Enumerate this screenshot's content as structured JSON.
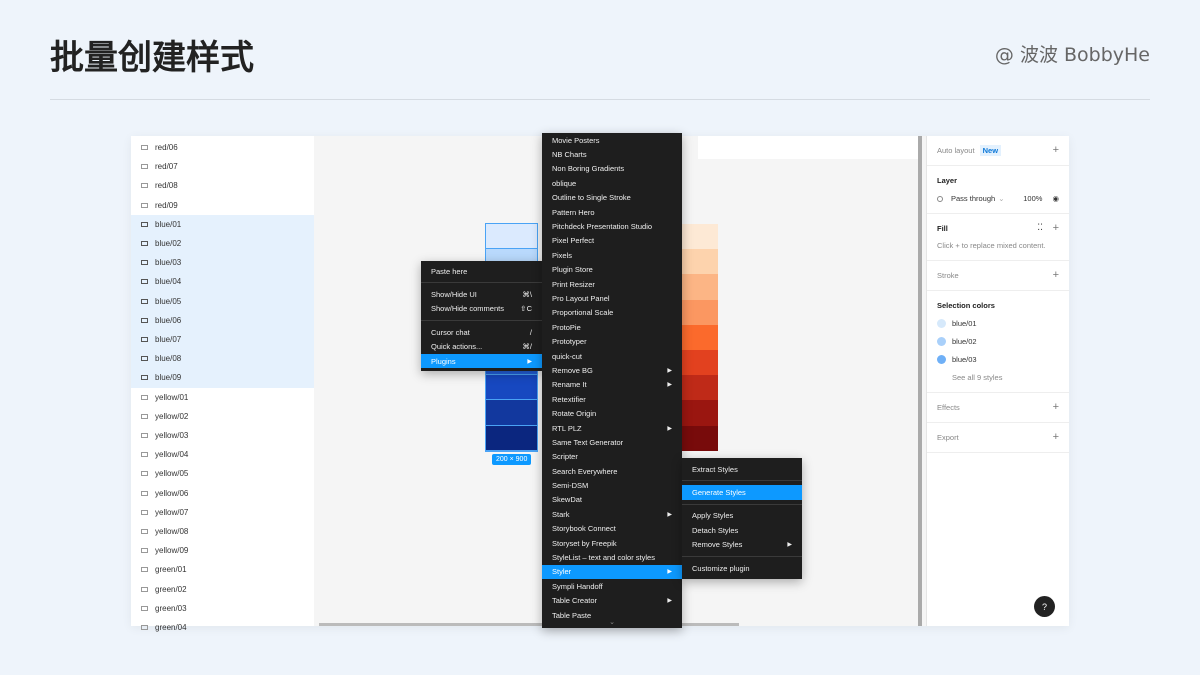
{
  "header": {
    "title": "批量创建样式",
    "author": "@ 波波 BobbyHe"
  },
  "layers": [
    "red/06",
    "red/07",
    "red/08",
    "red/09",
    "blue/01",
    "blue/02",
    "blue/03",
    "blue/04",
    "blue/05",
    "blue/06",
    "blue/07",
    "blue/08",
    "blue/09",
    "yellow/01",
    "yellow/02",
    "yellow/03",
    "yellow/04",
    "yellow/05",
    "yellow/06",
    "yellow/07",
    "yellow/08",
    "yellow/09",
    "green/01",
    "green/02",
    "green/03",
    "green/04"
  ],
  "canvas": {
    "size_label": "200 × 900",
    "blue_colors": [
      "#dbeafe",
      "#b9d9fc",
      "#8fc1fb",
      "#5ea2f7",
      "#3a7ff0",
      "#2360dc",
      "#1748c0",
      "#12389e",
      "#0b267f"
    ],
    "red_colors": [
      "#fde9d5",
      "#fdd3ad",
      "#fcb585",
      "#fb9761",
      "#fb6a2c",
      "#e2411f",
      "#bf2a18",
      "#9a1610",
      "#780b0b"
    ]
  },
  "context_menu": {
    "items": [
      {
        "label": "Paste here",
        "shortcut": ""
      },
      {
        "label": "Show/Hide UI",
        "shortcut": "⌘\\"
      },
      {
        "label": "Show/Hide comments",
        "shortcut": "⇧C"
      },
      {
        "label": "Cursor chat",
        "shortcut": "/"
      },
      {
        "label": "Quick actions...",
        "shortcut": "⌘/"
      },
      {
        "label": "Plugins",
        "shortcut": "▶"
      }
    ]
  },
  "plugins_menu": {
    "items": [
      {
        "label": "Movie Posters"
      },
      {
        "label": "NB Charts"
      },
      {
        "label": "Non Boring Gradients"
      },
      {
        "label": "oblique"
      },
      {
        "label": "Outline to Single Stroke"
      },
      {
        "label": "Pattern Hero"
      },
      {
        "label": "Pitchdeck Presentation Studio"
      },
      {
        "label": "Pixel Perfect"
      },
      {
        "label": "Pixels"
      },
      {
        "label": "Plugin Store"
      },
      {
        "label": "Print Resizer"
      },
      {
        "label": "Pro Layout Panel"
      },
      {
        "label": "Proportional Scale"
      },
      {
        "label": "ProtoPie"
      },
      {
        "label": "Prototyper"
      },
      {
        "label": "quick-cut"
      },
      {
        "label": "Remove BG",
        "sub": "▶"
      },
      {
        "label": "Rename It",
        "sub": "▶"
      },
      {
        "label": "Retextifier"
      },
      {
        "label": "Rotate Origin"
      },
      {
        "label": "RTL PLZ",
        "sub": "▶"
      },
      {
        "label": "Same Text Generator"
      },
      {
        "label": "Scripter"
      },
      {
        "label": "Search Everywhere"
      },
      {
        "label": "Semi-DSM"
      },
      {
        "label": "SkewDat"
      },
      {
        "label": "Stark",
        "sub": "▶"
      },
      {
        "label": "Storybook Connect"
      },
      {
        "label": "Storyset by Freepik"
      },
      {
        "label": "StyleList – text and color styles"
      },
      {
        "label": "Styler",
        "sub": "▶",
        "active": true
      },
      {
        "label": "Sympli Handoff"
      },
      {
        "label": "Table Creator",
        "sub": "▶"
      },
      {
        "label": "Table Paste"
      }
    ],
    "more": "⌄"
  },
  "styler_menu": {
    "extract": "Extract Styles",
    "generate": "Generate Styles",
    "apply": "Apply Styles",
    "detach": "Detach Styles",
    "remove": "Remove Styles",
    "arrow": "▶",
    "customize": "Customize plugin"
  },
  "properties": {
    "auto_layout": "Auto layout",
    "new_badge": "New",
    "layer": "Layer",
    "blend": "Pass through",
    "opacity": "100%",
    "fill": "Fill",
    "fill_hint": "Click + to replace mixed content.",
    "stroke": "Stroke",
    "selection_colors": "Selection colors",
    "colors": [
      {
        "name": "blue/01",
        "hex": "#d6e9fb"
      },
      {
        "name": "blue/02",
        "hex": "#a9d0fa"
      },
      {
        "name": "blue/03",
        "hex": "#6fb0f7"
      }
    ],
    "see_all": "See all 9 styles",
    "effects": "Effects",
    "export": "Export",
    "plus": "+",
    "help": "?"
  }
}
